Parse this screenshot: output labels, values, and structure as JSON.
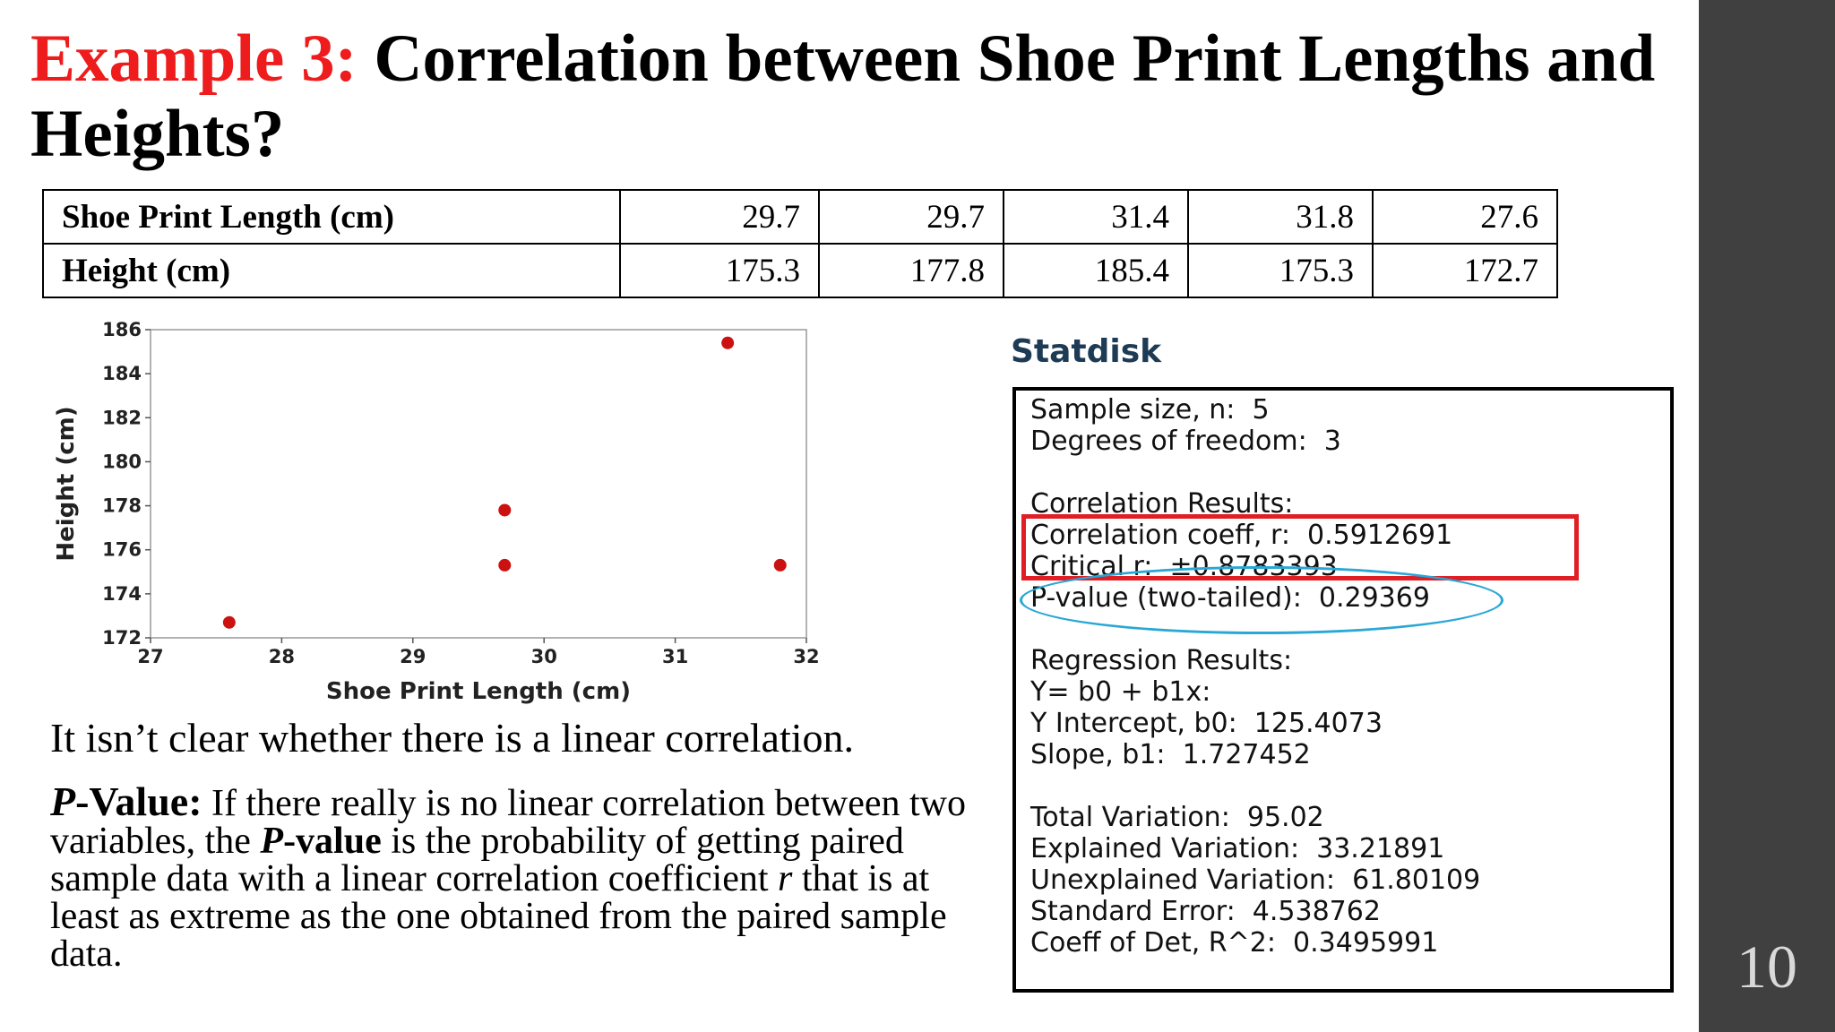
{
  "title": {
    "prefix": "Example 3:",
    "main": " Correlation between Shoe Print Lengths and Heights?"
  },
  "table": {
    "rows": [
      {
        "label": "Shoe Print Length (cm)",
        "values": [
          "29.7",
          "29.7",
          "31.4",
          "31.8",
          "27.6"
        ]
      },
      {
        "label": "Height (cm)",
        "values": [
          "175.3",
          "177.8",
          "185.4",
          "175.3",
          "172.7"
        ]
      }
    ]
  },
  "chart_data": {
    "type": "scatter",
    "x": [
      29.7,
      29.7,
      31.4,
      31.8,
      27.6
    ],
    "y": [
      175.3,
      177.8,
      185.4,
      175.3,
      172.7
    ],
    "xlabel": "Shoe Print Length (cm)",
    "ylabel": "Height (cm)",
    "xlim": [
      27,
      32
    ],
    "ylim": [
      172,
      186
    ],
    "xticks": [
      27,
      28,
      29,
      30,
      31,
      32
    ],
    "yticks": [
      172,
      174,
      176,
      178,
      180,
      182,
      184,
      186
    ],
    "grid": false,
    "point_color": "#cc1111"
  },
  "body": {
    "line1": "It isn’t clear whether there is a linear correlation.",
    "pvalue_lead_italic": "P",
    "pvalue_lead_rest": "-Value:",
    "para_part1": " If there really is no linear correlation between two variables, the ",
    "para_p_italic": "P",
    "para_p_rest": "-value",
    "para_part2": " is the probability of getting paired sample data with a linear correlation coefficient ",
    "para_r_italic": "r",
    "para_part3": " that is at least as extreme as the one obtained from the paired sample data."
  },
  "statdisk": {
    "label": "Statdisk",
    "lines": [
      "Sample size, n:  5",
      "Degrees of freedom:  3",
      "",
      "Correlation Results:",
      "Correlation coeff, r:  0.5912691",
      "Critical r:  ±0.8783393",
      "P-value (two-tailed):  0.29369",
      "",
      "Regression Results:",
      "Y= b0 + b1x:",
      "Y Intercept, b0:  125.4073",
      "Slope, b1:  1.727452",
      "",
      "Total Variation:  95.02",
      "Explained Variation:  33.21891",
      "Unexplained Variation:  61.80109",
      "Standard Error:  4.538762",
      "Coeff of Det, R^2:  0.3495991"
    ],
    "highlight_rect_color": "#e01e24",
    "highlight_ellipse_color": "#29a7d6"
  },
  "slide_number": "10"
}
